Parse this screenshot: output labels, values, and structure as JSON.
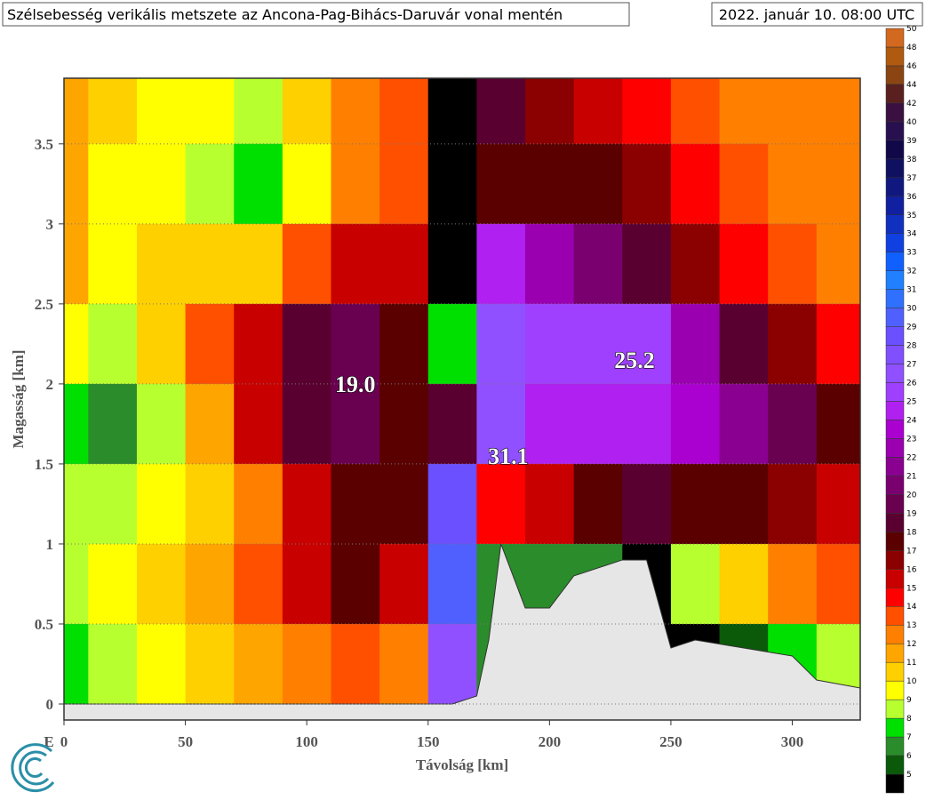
{
  "chart_data": {
    "type": "heatmap",
    "title": "Szélsebesség verikális metszete az Ancona-Pag-Bihács-Daruvár vonal mentén",
    "subtitle": "2022. január 10. 08:00 UTC",
    "x_label": "Távolság [km]",
    "y_label": "Magasság [km]",
    "start_label": "E",
    "xlim": [
      0,
      328
    ],
    "ylim": [
      -0.1,
      3.91
    ],
    "xticks": [
      0,
      50,
      100,
      150,
      200,
      250,
      300
    ],
    "yticks": [
      0,
      0.5,
      1,
      1.5,
      2,
      2.5,
      3,
      3.5
    ],
    "grid": true,
    "field": {
      "x": [
        0,
        20,
        40,
        60,
        80,
        100,
        120,
        140,
        160,
        180,
        200,
        220,
        240,
        260,
        280,
        300,
        320
      ],
      "y": [
        3.75,
        3.25,
        2.75,
        2.25,
        1.75,
        1.25,
        0.75,
        0.25
      ],
      "values": [
        [
          11,
          10,
          9,
          9,
          8,
          10,
          12,
          13,
          3,
          18,
          16,
          15,
          14,
          13,
          12,
          12,
          12
        ],
        [
          11,
          9,
          9,
          8,
          7,
          9,
          12,
          13,
          3,
          17,
          17,
          17,
          16,
          14,
          13,
          12,
          12
        ],
        [
          11,
          9,
          10,
          10,
          10,
          13,
          15,
          15,
          4,
          24,
          22,
          20,
          18,
          16,
          14,
          13,
          12
        ],
        [
          9,
          8,
          10,
          13,
          15,
          18,
          19,
          17,
          7,
          26,
          25,
          25,
          25,
          22,
          18,
          16,
          14
        ],
        [
          7,
          6,
          8,
          11,
          15,
          18,
          19,
          17,
          18,
          26,
          24,
          24,
          24,
          23,
          21,
          19,
          17
        ],
        [
          8,
          8,
          9,
          10,
          12,
          15,
          17,
          17,
          28,
          14,
          15,
          17,
          18,
          17,
          17,
          16,
          15
        ],
        [
          8,
          9,
          10,
          11,
          13,
          15,
          17,
          15,
          29,
          6,
          6,
          6,
          4,
          8,
          10,
          12,
          13
        ],
        [
          7,
          8,
          9,
          10,
          11,
          12,
          13,
          12,
          26,
          6,
          6,
          6,
          4,
          4,
          5,
          7,
          8
        ]
      ]
    },
    "terrain": {
      "color": "#e6e6e6",
      "x": [
        0,
        15,
        100,
        140,
        160,
        170,
        175,
        180,
        190,
        200,
        210,
        230,
        240,
        250,
        260,
        280,
        300,
        310,
        328
      ],
      "height": [
        0,
        0,
        0,
        0,
        0,
        0.05,
        0.4,
        1.0,
        0.6,
        0.6,
        0.8,
        0.9,
        0.9,
        0.35,
        0.4,
        0.35,
        0.3,
        0.15,
        0.1
      ]
    },
    "annotations": [
      {
        "text": "19.0",
        "x": 120,
        "y": 2.0
      },
      {
        "text": "25.2",
        "x": 235,
        "y": 2.15
      },
      {
        "text": "31.1",
        "x": 183,
        "y": 1.55
      }
    ],
    "colorbar": {
      "levels": [
        5,
        6,
        7,
        8,
        9,
        10,
        11,
        12,
        13,
        14,
        15,
        16,
        17,
        18,
        19,
        20,
        21,
        22,
        23,
        24,
        25,
        26,
        27,
        28,
        29,
        30,
        31,
        32,
        33,
        34,
        35,
        36,
        37,
        38,
        39,
        40,
        42,
        44,
        46,
        48,
        50
      ],
      "colors": [
        "#000000",
        "#0a5a0a",
        "#2a8c2a",
        "#00e000",
        "#b8ff30",
        "#ffff00",
        "#ffd000",
        "#ffa500",
        "#ff8000",
        "#ff5000",
        "#ff0000",
        "#c80000",
        "#8b0000",
        "#5a0000",
        "#5a0030",
        "#6a0050",
        "#7a0070",
        "#8a0090",
        "#9a00b0",
        "#aa00d0",
        "#b020f0",
        "#a040ff",
        "#9050ff",
        "#8050ff",
        "#6a50ff",
        "#5060ff",
        "#3070ff",
        "#2080ff",
        "#1060ff",
        "#1040e0",
        "#1030c0",
        "#1020a0",
        "#101880",
        "#101060",
        "#100848",
        "#281050",
        "#3a1040",
        "#5a2020",
        "#8b4513",
        "#b05a10",
        "#d2691e"
      ]
    }
  }
}
